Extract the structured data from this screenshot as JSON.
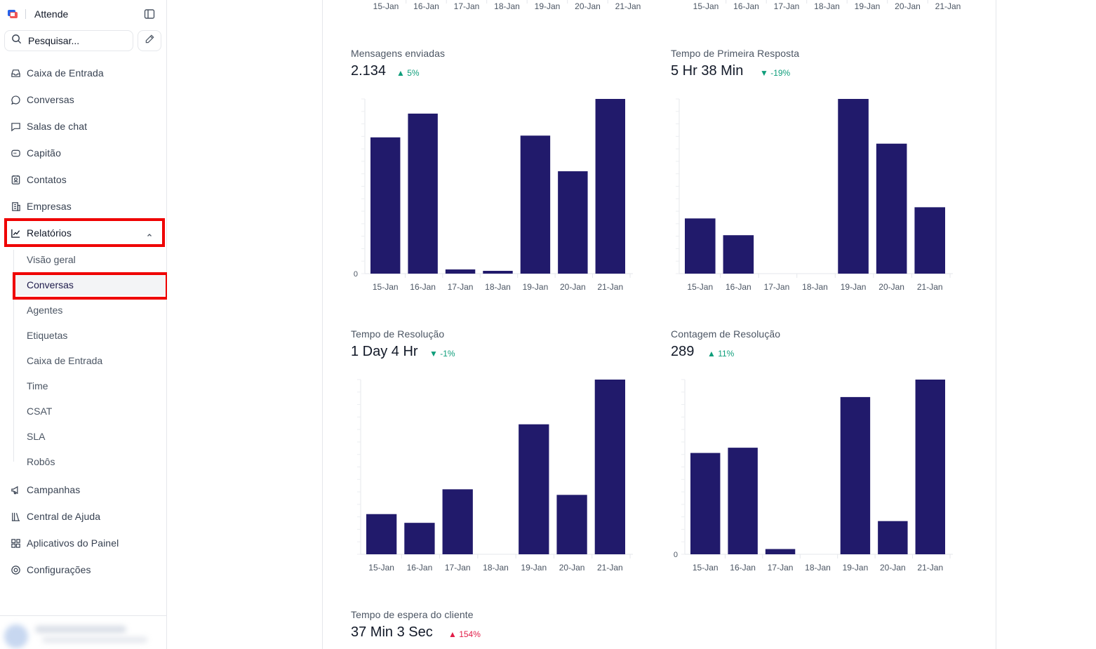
{
  "app": {
    "name": "Attende"
  },
  "search": {
    "placeholder": "Pesquisar..."
  },
  "nav": {
    "inbox": "Caixa de Entrada",
    "conversations": "Conversas",
    "chat_rooms": "Salas de chat",
    "captain": "Capitão",
    "contacts": "Contatos",
    "companies": "Empresas",
    "reports": "Relatórios",
    "campaigns": "Campanhas",
    "help_center": "Central de Ajuda",
    "dashboard_apps": "Aplicativos do Painel",
    "settings": "Configurações"
  },
  "reports_sub": [
    "Visão geral",
    "Conversas",
    "Agentes",
    "Etiquetas",
    "Caixa de Entrada",
    "Time",
    "CSAT",
    "SLA",
    "Robôs"
  ],
  "colors": {
    "bar": "#211a6b",
    "highlight": "#ef0000",
    "delta_good": "#0f9e7b",
    "delta_bad": "#e11d48"
  },
  "top_axis": {
    "labels": [
      "15-Jan",
      "16-Jan",
      "17-Jan",
      "18-Jan",
      "19-Jan",
      "20-Jan",
      "21-Jan"
    ]
  },
  "metrics": {
    "messages_sent": {
      "title": "Mensagens enviadas",
      "value": "2.134",
      "delta": "▲ 5%"
    },
    "first_response": {
      "title": "Tempo de Primeira Resposta",
      "value": "5 Hr 38 Min",
      "delta": "▼ -19%"
    },
    "resolution_time": {
      "title": "Tempo de Resolução",
      "value": "1 Day 4 Hr",
      "delta": "▼ -1%"
    },
    "resolution_count": {
      "title": "Contagem de Resolução",
      "value": "289",
      "delta": "▲ 11%"
    },
    "customer_wait": {
      "title": "Tempo de espera do cliente",
      "value": "37 Min 3 Sec",
      "delta": "▲ 154%"
    }
  },
  "chart_data": [
    {
      "type": "bar",
      "title": "Mensagens enviadas",
      "categories": [
        "15-Jan",
        "16-Jan",
        "17-Jan",
        "18-Jan",
        "19-Jan",
        "20-Jan",
        "21-Jan"
      ],
      "values": [
        390,
        458,
        12,
        8,
        395,
        293,
        500
      ],
      "ylim": [
        0,
        500
      ],
      "y_tick_labels": [
        "0"
      ]
    },
    {
      "type": "bar",
      "title": "Tempo de Primeira Resposta",
      "categories": [
        "15-Jan",
        "16-Jan",
        "17-Jan",
        "18-Jan",
        "19-Jan",
        "20-Jan",
        "21-Jan"
      ],
      "values": [
        158,
        110,
        0,
        0,
        500,
        372,
        190
      ],
      "ylim": [
        0,
        500
      ],
      "y_tick_labels": []
    },
    {
      "type": "bar",
      "title": "Tempo de Resolução",
      "categories": [
        "15-Jan",
        "16-Jan",
        "17-Jan",
        "18-Jan",
        "19-Jan",
        "20-Jan",
        "21-Jan"
      ],
      "values": [
        115,
        90,
        186,
        0,
        372,
        170,
        500
      ],
      "ylim": [
        0,
        500
      ],
      "y_tick_labels": []
    },
    {
      "type": "bar",
      "title": "Contagem de Resolução",
      "categories": [
        "15-Jan",
        "16-Jan",
        "17-Jan",
        "18-Jan",
        "19-Jan",
        "20-Jan",
        "21-Jan"
      ],
      "values": [
        58,
        61,
        3,
        0,
        90,
        19,
        100
      ],
      "ylim": [
        0,
        100
      ],
      "y_tick_labels": [
        "0"
      ]
    }
  ]
}
